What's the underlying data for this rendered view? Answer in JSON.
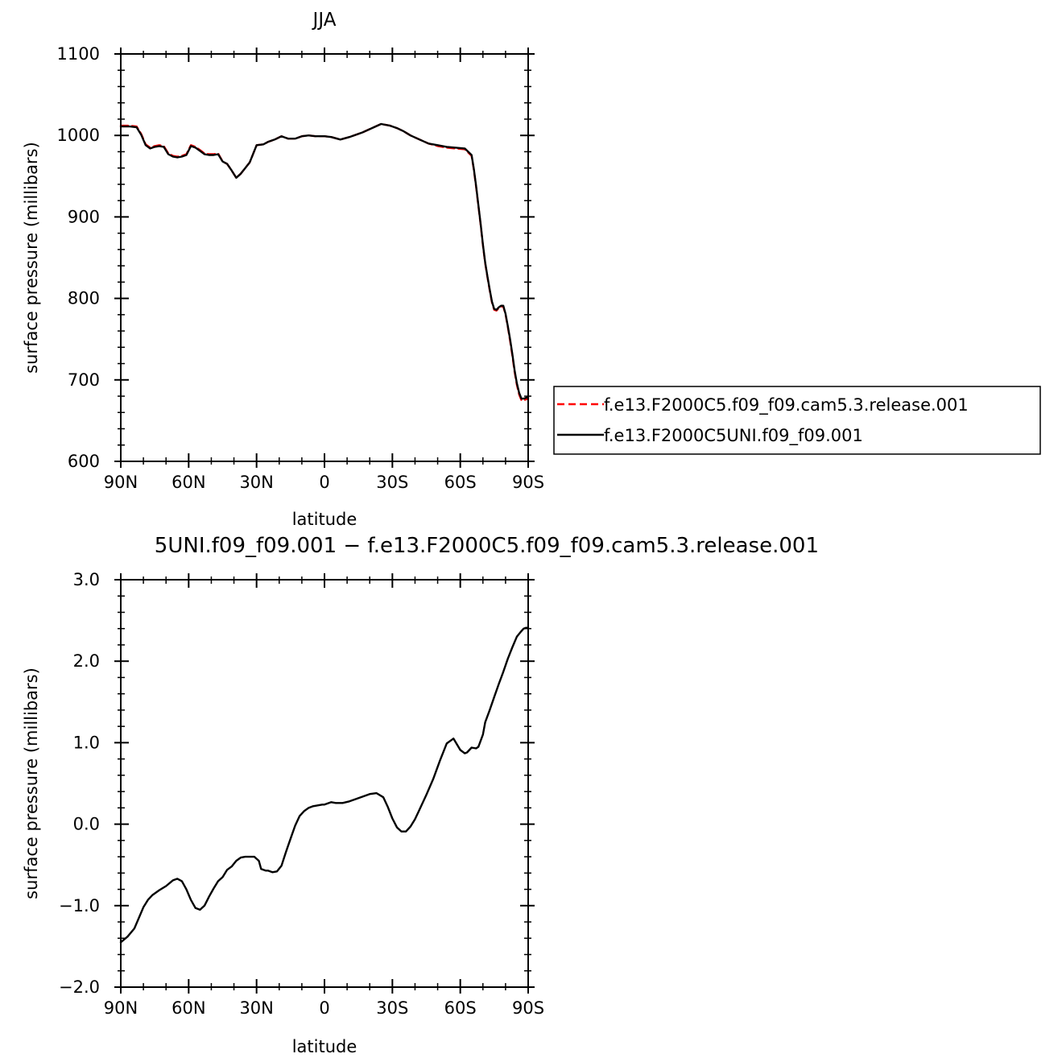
{
  "chart_data": [
    {
      "type": "line",
      "title": "JJA",
      "xlabel": "latitude",
      "ylabel": "surface pressure (millibars)",
      "xlim": [
        90,
        -90
      ],
      "ylim": [
        600,
        1100
      ],
      "xticks": [
        90,
        60,
        30,
        0,
        -30,
        -60,
        -90
      ],
      "xtick_labels": [
        "90N",
        "60N",
        "30N",
        "0",
        "30S",
        "60S",
        "90S"
      ],
      "yticks": [
        600,
        700,
        800,
        900,
        1000,
        1100
      ],
      "ytick_labels": [
        "600",
        "700",
        "800",
        "900",
        "1000",
        "1100"
      ],
      "grid": false,
      "legend_position": "right",
      "series": [
        {
          "name": "f.e13.F2000C5.f09_f09.cam5.3.release.001",
          "color": "#ff0000",
          "dash": "dashed",
          "x": [
            90,
            86,
            83,
            81,
            79,
            77,
            75,
            73,
            71,
            69,
            67,
            65,
            63,
            61,
            59,
            57,
            55,
            53,
            51,
            49,
            47,
            45,
            43,
            41,
            39,
            37,
            35,
            33,
            30,
            27,
            25,
            22,
            19,
            16,
            13,
            10,
            7,
            4,
            0,
            -3,
            -7,
            -11,
            -14,
            -17,
            -21,
            -25,
            -29,
            -32,
            -35,
            -38,
            -42,
            -46,
            -50,
            -54,
            -58,
            -62,
            -65,
            -66,
            -67,
            -68,
            -69,
            -70,
            -71,
            -72,
            -73,
            -74,
            -75,
            -76,
            -77,
            -78,
            -79,
            -80,
            -81,
            -82,
            -83,
            -84,
            -85,
            -86,
            -87,
            -88,
            -89,
            -90
          ],
          "y": [
            1012,
            1012,
            1011,
            1002,
            989,
            985,
            987,
            988,
            987,
            978,
            975,
            974,
            975,
            977,
            988,
            986,
            982,
            978,
            977,
            977,
            978,
            968,
            965,
            957,
            948,
            953,
            960,
            967,
            988,
            989,
            992,
            995,
            999,
            996,
            996,
            999,
            1000,
            999,
            999,
            998,
            995,
            998,
            1001,
            1004,
            1009,
            1014,
            1012,
            1009,
            1005,
            1000,
            995,
            990,
            987,
            985,
            984,
            983,
            975,
            958,
            937,
            913,
            890,
            865,
            843,
            826,
            810,
            795,
            786,
            785,
            788,
            790,
            790,
            780,
            765,
            748,
            730,
            710,
            694,
            682,
            675,
            675,
            676,
            677
          ]
        },
        {
          "name": "f.e13.F2000C5UNI.f09_f09.001",
          "color": "#000000",
          "dash": "solid",
          "x": [
            90,
            86,
            83,
            81,
            79,
            77,
            75,
            73,
            71,
            69,
            67,
            65,
            63,
            61,
            59,
            57,
            55,
            53,
            51,
            49,
            47,
            45,
            43,
            41,
            39,
            37,
            35,
            33,
            30,
            27,
            25,
            22,
            19,
            16,
            13,
            10,
            7,
            4,
            0,
            -3,
            -7,
            -11,
            -14,
            -17,
            -21,
            -25,
            -29,
            -32,
            -35,
            -38,
            -42,
            -46,
            -50,
            -54,
            -58,
            -62,
            -65,
            -66,
            -67,
            -68,
            -69,
            -70,
            -71,
            -72,
            -73,
            -74,
            -75,
            -76,
            -77,
            -78,
            -79,
            -80,
            -81,
            -82,
            -83,
            -84,
            -85,
            -86,
            -87,
            -88,
            -89,
            -90
          ],
          "y": [
            1011,
            1011,
            1010,
            1001,
            988,
            984,
            986,
            987,
            986,
            977,
            974,
            973,
            974,
            976,
            987,
            985,
            981,
            977,
            976,
            976,
            977,
            968,
            965,
            957,
            948,
            953,
            960,
            967,
            988,
            989,
            992,
            995,
            999,
            996,
            996,
            999,
            1000,
            999,
            999,
            998,
            995,
            998,
            1001,
            1004,
            1009,
            1014,
            1012,
            1009,
            1005,
            1000,
            995,
            990,
            988,
            986,
            985,
            984,
            976,
            959,
            938,
            914,
            891,
            866,
            844,
            827,
            811,
            796,
            787,
            786,
            789,
            791,
            791,
            781,
            766,
            750,
            732,
            712,
            696,
            684,
            677,
            677,
            678,
            679
          ]
        }
      ]
    },
    {
      "type": "line",
      "title": "5UNI.f09_f09.001 − f.e13.F2000C5.f09_f09.cam5.3.release.001",
      "xlabel": "latitude",
      "ylabel": "surface pressure (millibars)",
      "xlim": [
        90,
        -90
      ],
      "ylim": [
        -2.0,
        3.0
      ],
      "xticks": [
        90,
        60,
        30,
        0,
        -30,
        -60,
        -90
      ],
      "xtick_labels": [
        "90N",
        "60N",
        "30N",
        "0",
        "30S",
        "60S",
        "90S"
      ],
      "yticks": [
        -2.0,
        -1.0,
        0.0,
        1.0,
        2.0,
        3.0
      ],
      "ytick_labels": [
        "−2.0",
        "−1.0",
        "0.0",
        "1.0",
        "2.0",
        "3.0"
      ],
      "grid": false,
      "series": [
        {
          "color": "#000000",
          "dash": "solid",
          "x": [
            90,
            87,
            84,
            82,
            80,
            78,
            76,
            73,
            70,
            67,
            65,
            63,
            61,
            59,
            57,
            55,
            53,
            51,
            49,
            47,
            45,
            43,
            41,
            39,
            37,
            35,
            33,
            31,
            29,
            28,
            26,
            25,
            23,
            21,
            19,
            17,
            15,
            13,
            11,
            9,
            7,
            5,
            3,
            1,
            0,
            -3,
            -5,
            -8,
            -11,
            -14,
            -17,
            -20,
            -23,
            -26,
            -28,
            -30,
            -32,
            -34,
            -36,
            -38,
            -40,
            -42,
            -45,
            -48,
            -51,
            -54,
            -57,
            -60,
            -62,
            -63,
            -65,
            -67,
            -68,
            -70,
            -71,
            -73,
            -75,
            -77,
            -79,
            -81,
            -83,
            -85,
            -87,
            -88,
            -89,
            -90
          ],
          "y": [
            -1.45,
            -1.38,
            -1.28,
            -1.15,
            -1.02,
            -0.93,
            -0.87,
            -0.81,
            -0.76,
            -0.69,
            -0.67,
            -0.7,
            -0.8,
            -0.93,
            -1.03,
            -1.05,
            -1.0,
            -0.89,
            -0.79,
            -0.7,
            -0.65,
            -0.56,
            -0.52,
            -0.45,
            -0.41,
            -0.4,
            -0.4,
            -0.4,
            -0.45,
            -0.55,
            -0.57,
            -0.57,
            -0.59,
            -0.58,
            -0.51,
            -0.34,
            -0.18,
            -0.02,
            0.1,
            0.16,
            0.2,
            0.22,
            0.23,
            0.24,
            0.24,
            0.27,
            0.26,
            0.26,
            0.28,
            0.31,
            0.34,
            0.37,
            0.38,
            0.33,
            0.21,
            0.07,
            -0.04,
            -0.09,
            -0.09,
            -0.03,
            0.06,
            0.18,
            0.36,
            0.55,
            0.78,
            0.99,
            1.05,
            0.91,
            0.87,
            0.88,
            0.94,
            0.93,
            0.95,
            1.1,
            1.25,
            1.4,
            1.56,
            1.72,
            1.87,
            2.03,
            2.17,
            2.3,
            2.37,
            2.4,
            2.41,
            2.41
          ]
        }
      ]
    }
  ]
}
